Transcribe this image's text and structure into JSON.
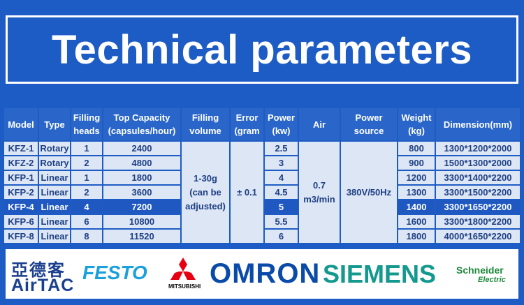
{
  "header": {
    "title": "Technical parameters"
  },
  "table": {
    "columns": [
      [
        "Model"
      ],
      [
        "Type"
      ],
      [
        "Filling",
        "heads"
      ],
      [
        "Top Capacity",
        "(capsules/hour)"
      ],
      [
        "Filling",
        "volume"
      ],
      [
        "Error",
        "(gram"
      ],
      [
        "Power",
        "(kw)"
      ],
      [
        "Air"
      ],
      [
        "Power",
        "source"
      ],
      [
        "Weight",
        "(kg)"
      ],
      [
        "Dimension(mm)"
      ]
    ],
    "rows": [
      [
        "KFZ-1",
        "Rotary",
        "1",
        "2400",
        "2.5",
        "800",
        "1300*1200*2000"
      ],
      [
        "KFZ-2",
        "Rotary",
        "2",
        "4800",
        "3",
        "900",
        "1500*1300*2000"
      ],
      [
        "KFP-1",
        "Linear",
        "1",
        "1800",
        "4",
        "1200",
        "3300*1400*2200"
      ],
      [
        "KFP-2",
        "Linear",
        "2",
        "3600",
        "4.5",
        "1300",
        "3300*1500*2200"
      ],
      [
        "KFP-4",
        "Linear",
        "4",
        "7200",
        "5",
        "1400",
        "3300*1650*2200"
      ],
      [
        "KFP-6",
        "Linear",
        "6",
        "10800",
        "5.5",
        "1600",
        "3300*1800*2200"
      ],
      [
        "KFP-8",
        "Linear",
        "8",
        "11520",
        "6",
        "1800",
        "4000*1650*2200"
      ]
    ],
    "highlight_row": 4,
    "merged": {
      "filling_volume": [
        "1-30g",
        "(can be",
        "adjusted)"
      ],
      "error": "± 0.1",
      "air": [
        "0.7",
        "m3/min"
      ],
      "power_source": "380V/50Hz"
    }
  },
  "logos": {
    "airtac_cn": "亞德客",
    "airtac": "AirTAC",
    "festo": "FESTO",
    "mitsubishi": "MITSUBISHI",
    "omron": "OMRON",
    "siemens": "SIEMENS",
    "schneider": "Schneider",
    "electric": "Electric"
  }
}
